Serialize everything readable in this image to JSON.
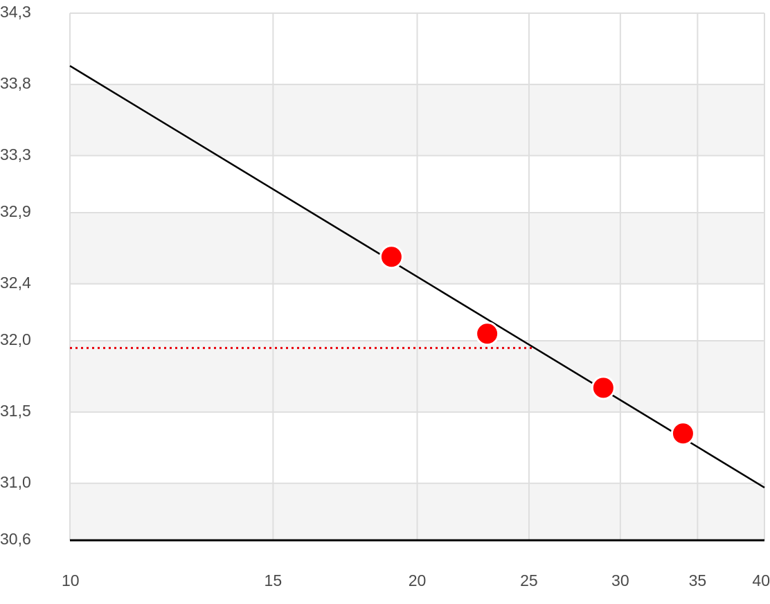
{
  "chart_data": {
    "type": "scatter",
    "x_scale": "log",
    "xlim": [
      10,
      40
    ],
    "ylim": [
      30.6,
      34.3
    ],
    "xticks": [
      10,
      15,
      20,
      25,
      30,
      35,
      40
    ],
    "yticks": [
      {
        "value": 30.6,
        "label": "30,6"
      },
      {
        "value": 31.0,
        "label": "31,0"
      },
      {
        "value": 31.5,
        "label": "31,5"
      },
      {
        "value": 32.0,
        "label": "32,0"
      },
      {
        "value": 32.4,
        "label": "32,4"
      },
      {
        "value": 32.9,
        "label": "32,9"
      },
      {
        "value": 33.3,
        "label": "33,3"
      },
      {
        "value": 33.8,
        "label": "33,8"
      },
      {
        "value": 34.3,
        "label": "34,3"
      }
    ],
    "grid": true,
    "banded_background": true,
    "series": [
      {
        "color": "#ff0000",
        "x": [
          19,
          23,
          29,
          34
        ],
        "values": [
          32.59,
          32.05,
          31.67,
          31.35
        ]
      }
    ],
    "fit_line": {
      "color": "#000000",
      "x": [
        10,
        40
      ],
      "values": [
        33.93,
        30.97
      ]
    },
    "reference_line": {
      "color": "#e8000b",
      "x": [
        10,
        25.2
      ],
      "values": [
        31.95,
        31.95
      ]
    }
  }
}
